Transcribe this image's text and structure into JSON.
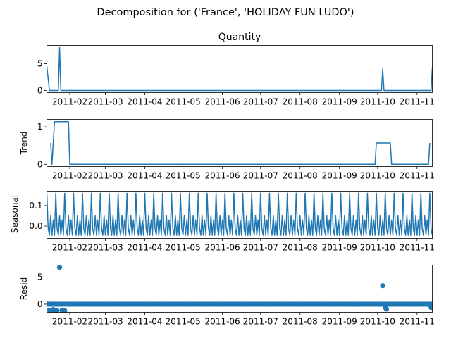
{
  "figure": {
    "suptitle": "Decomposition for ('France', 'HOLIDAY FUN LUDO')",
    "line_color": "#1f77b4"
  },
  "chart_data": [
    {
      "type": "line",
      "title": "Quantity",
      "ylabel": "",
      "ylim": [
        -0.4,
        8.4
      ],
      "yticks": [
        0,
        5
      ],
      "x_tick_labels": [
        "2011-02",
        "2011-03",
        "2011-04",
        "2011-05",
        "2011-06",
        "2011-07",
        "2011-08",
        "2011-09",
        "2011-10",
        "2011-11"
      ],
      "x_dates": [
        "2011-01-14",
        "2011-01-16",
        "2011-01-17",
        "2011-01-23",
        "2011-01-24",
        "2011-01-25",
        "2011-10-04",
        "2011-10-05",
        "2011-10-06",
        "2011-11-12",
        "2011-11-13"
      ],
      "series": [
        {
          "values": [
            4.5,
            0,
            0,
            0,
            8,
            0,
            0,
            4,
            0,
            0,
            4.2
          ]
        }
      ]
    },
    {
      "type": "line",
      "title": "",
      "ylabel": "Trend",
      "ylim": [
        -0.06,
        1.2
      ],
      "yticks": [
        0,
        1
      ],
      "x_tick_labels": [
        "2011-02",
        "2011-03",
        "2011-04",
        "2011-05",
        "2011-06",
        "2011-07",
        "2011-08",
        "2011-09",
        "2011-10",
        "2011-11"
      ],
      "x_dates": [
        "2011-01-17",
        "2011-01-18",
        "2011-01-20",
        "2011-01-21",
        "2011-01-31",
        "2011-02-01",
        "2011-09-29",
        "2011-09-30",
        "2011-10-11",
        "2011-10-12",
        "2011-11-10",
        "2011-11-11"
      ],
      "series": [
        {
          "values": [
            0.57,
            0,
            1.14,
            1.14,
            1.14,
            0,
            0,
            0.57,
            0.57,
            0,
            0,
            0.57
          ]
        }
      ]
    },
    {
      "type": "line",
      "title": "",
      "ylabel": "Seasonal",
      "ylim": [
        -0.06,
        0.17
      ],
      "yticks": [
        0.0,
        0.1
      ],
      "x_tick_labels": [
        "2011-02",
        "2011-03",
        "2011-04",
        "2011-05",
        "2011-06",
        "2011-07",
        "2011-08",
        "2011-09",
        "2011-10",
        "2011-11"
      ],
      "period_days": 7,
      "x_start": "2011-01-14",
      "x_end": "2011-11-13",
      "weekly_pattern": [
        0.16,
        -0.01,
        -0.045,
        0.05,
        -0.045,
        0.03,
        -0.045
      ]
    },
    {
      "type": "scatter",
      "title": "",
      "ylabel": "Resid",
      "ylim": [
        -1.5,
        7.2
      ],
      "yticks": [
        0,
        5
      ],
      "x_tick_labels": [
        "2011-02",
        "2011-03",
        "2011-04",
        "2011-05",
        "2011-06",
        "2011-07",
        "2011-08",
        "2011-09",
        "2011-10",
        "2011-11"
      ],
      "x_start": "2011-01-14",
      "x_end": "2011-11-13",
      "baseline_value": 0,
      "outliers": [
        {
          "date": "2011-01-14",
          "value": 0.1
        },
        {
          "date": "2011-01-16",
          "value": -1.1
        },
        {
          "date": "2011-01-17",
          "value": -1.2
        },
        {
          "date": "2011-01-19",
          "value": -1.0
        },
        {
          "date": "2011-01-21",
          "value": -1.1
        },
        {
          "date": "2011-01-22",
          "value": -1.2
        },
        {
          "date": "2011-01-24",
          "value": 6.8
        },
        {
          "date": "2011-01-26",
          "value": -1.1
        },
        {
          "date": "2011-01-28",
          "value": -1.2
        },
        {
          "date": "2011-10-05",
          "value": 3.4
        },
        {
          "date": "2011-10-07",
          "value": -0.6
        },
        {
          "date": "2011-10-08",
          "value": -0.9
        },
        {
          "date": "2011-11-12",
          "value": -0.6
        }
      ]
    }
  ]
}
